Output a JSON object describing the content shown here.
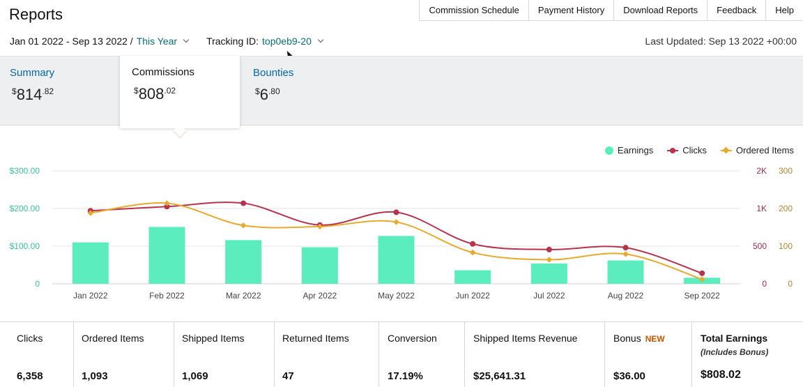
{
  "page": {
    "title": "Reports"
  },
  "topnav": {
    "items": [
      "Commission Schedule",
      "Payment History",
      "Download Reports",
      "Feedback",
      "Help"
    ]
  },
  "filters": {
    "date_range": "Jan 01 2022 - Sep 13 2022 /",
    "period": "This Year",
    "tracking_label": "Tracking ID:",
    "tracking_id": "top0eb9-20"
  },
  "last_updated": "Last Updated: Sep 13 2022 +00:00",
  "tabs": {
    "summary": {
      "label": "Summary",
      "currency": "$",
      "whole": "814",
      "cents": ".82"
    },
    "commissions": {
      "label": "Commissions",
      "currency": "$",
      "whole": "808",
      "cents": ".02"
    },
    "bounties": {
      "label": "Bounties",
      "currency": "$",
      "whole": "6",
      "cents": ".80"
    }
  },
  "legend": {
    "earnings": "Earnings",
    "clicks": "Clicks",
    "ordered": "Ordered Items"
  },
  "colors": {
    "earnings": "#5cedbe",
    "clicks": "#b8324e",
    "ordered": "#e8a92c",
    "left_axis": "#3cbf98",
    "clicks_axis": "#9e2a44",
    "ordered_axis": "#b0863a"
  },
  "chart_data": {
    "type": "bar",
    "categories": [
      "Jan 2022",
      "Feb 2022",
      "Mar 2022",
      "Apr 2022",
      "May 2022",
      "Jun 2022",
      "Jul 2022",
      "Aug 2022",
      "Sep 2022"
    ],
    "series": [
      {
        "name": "Earnings",
        "type": "bar",
        "axis": "left",
        "values": [
          110,
          151,
          116,
          97,
          127,
          36,
          54,
          62,
          16
        ]
      },
      {
        "name": "Clicks",
        "type": "line",
        "axis": "right-1",
        "values": [
          970,
          1050,
          1140,
          780,
          950,
          530,
          455,
          480,
          140
        ]
      },
      {
        "name": "Ordered Items",
        "type": "line",
        "axis": "right-2",
        "values": [
          188,
          214,
          155,
          152,
          164,
          83,
          64,
          79,
          12
        ]
      }
    ],
    "left_axis": {
      "ylim": [
        0,
        300
      ],
      "ticks": [
        "0",
        "$100.00",
        "$200.00",
        "$300.00"
      ]
    },
    "right_axis_1": {
      "ylim": [
        0,
        2000
      ],
      "ticks": [
        "0",
        "500",
        "1K",
        "2K"
      ]
    },
    "right_axis_2": {
      "ylim": [
        0,
        300
      ],
      "ticks": [
        "0",
        "100",
        "200",
        "300"
      ]
    },
    "grid": true,
    "legend": "top-right"
  },
  "metrics": [
    {
      "label": "Clicks",
      "value": "6,358"
    },
    {
      "label": "Ordered Items",
      "value": "1,093"
    },
    {
      "label": "Shipped Items",
      "value": "1,069"
    },
    {
      "label": "Returned Items",
      "value": "47"
    },
    {
      "label": "Conversion",
      "value": "17.19%"
    },
    {
      "label": "Shipped Items Revenue",
      "value": "$25,641.31"
    },
    {
      "label": "Bonus",
      "badge": "NEW",
      "value": "$36.00"
    },
    {
      "label": "Total Earnings",
      "sub": "(Includes Bonus)",
      "value": "$808.02"
    }
  ]
}
